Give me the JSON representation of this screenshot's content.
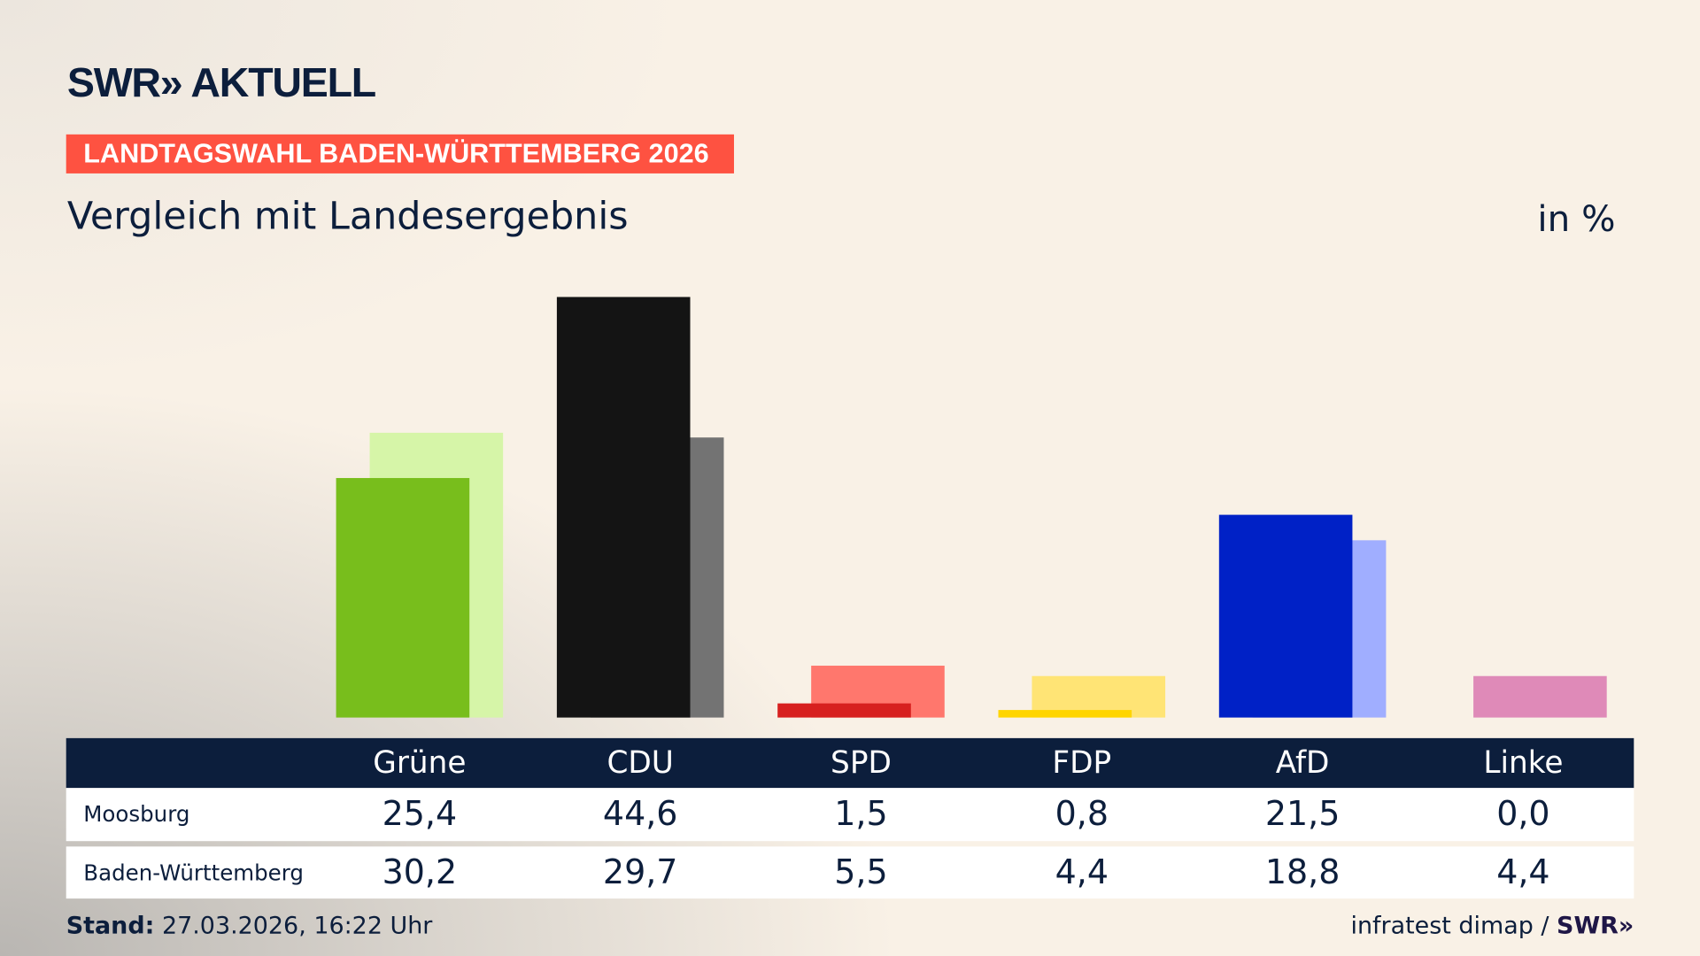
{
  "header": {
    "logo": "SWR» AKTUELL",
    "badge": "LANDTAGSWAHL BADEN-WÜRTTEMBERG 2026",
    "subtitle": "Vergleich mit Landesergebnis",
    "unit": "in %"
  },
  "chart_data": {
    "type": "bar",
    "categories": [
      "Grüne",
      "CDU",
      "SPD",
      "FDP",
      "AfD",
      "Linke"
    ],
    "series": [
      {
        "name": "Moosburg",
        "values": [
          25.4,
          44.6,
          1.5,
          0.8,
          21.5,
          0.0
        ],
        "values_text": [
          "25,4",
          "44,6",
          "1,5",
          "0,8",
          "21,5",
          "0,0"
        ],
        "colors": [
          "#78be1c",
          "#141414",
          "#d7201f",
          "#ffd500",
          "#0021c6",
          "#c5397f"
        ]
      },
      {
        "name": "Baden-Württemberg",
        "values": [
          30.2,
          29.7,
          5.5,
          4.4,
          18.8,
          4.4
        ],
        "values_text": [
          "30,2",
          "29,7",
          "5,5",
          "4,4",
          "18,8",
          "4,4"
        ],
        "colors": [
          "#d6f5a8",
          "#737373",
          "#ff776d",
          "#ffe475",
          "#a0aeff",
          "#df8ab8"
        ]
      }
    ],
    "ylim": [
      0,
      44.6
    ],
    "grid": false
  },
  "footer": {
    "stand_label": "Stand:",
    "stand_value": " 27.03.2026, 16:22 Uhr",
    "source": "infratest dimap / ",
    "source_logo": "SWR»"
  }
}
